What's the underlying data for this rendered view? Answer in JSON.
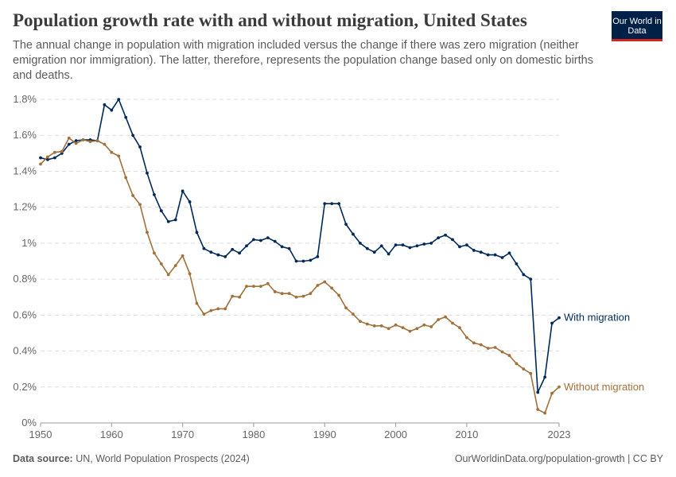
{
  "title": "Population growth rate with and without migration, United States",
  "subtitle": "The annual change in population with migration included versus the change if there was zero migration (neither emigration nor immigration). The latter, therefore, represents the population change based only on domestic births and deaths.",
  "logo": "Our World in Data",
  "footer": {
    "source_label": "Data source:",
    "source": "UN, World Population Prospects (2024)",
    "right": "OurWorldinData.org/population-growth | CC BY"
  },
  "chart_data": {
    "type": "line",
    "xlim": [
      1950,
      2023
    ],
    "ylim": [
      0,
      1.8
    ],
    "grid": "horizontal dashed",
    "legend": "right, inline labels",
    "yticks": [
      {
        "v": 0,
        "label": "0%"
      },
      {
        "v": 0.2,
        "label": "0.2%"
      },
      {
        "v": 0.4,
        "label": "0.4%"
      },
      {
        "v": 0.6,
        "label": "0.6%"
      },
      {
        "v": 0.8,
        "label": "0.8%"
      },
      {
        "v": 1,
        "label": "1%"
      },
      {
        "v": 1.2,
        "label": "1.2%"
      },
      {
        "v": 1.4,
        "label": "1.4%"
      },
      {
        "v": 1.6,
        "label": "1.6%"
      },
      {
        "v": 1.8,
        "label": "1.8%"
      }
    ],
    "xticks": [
      {
        "v": 1950,
        "label": "1950"
      },
      {
        "v": 1960,
        "label": "1960"
      },
      {
        "v": 1970,
        "label": "1970"
      },
      {
        "v": 1980,
        "label": "1980"
      },
      {
        "v": 1990,
        "label": "1990"
      },
      {
        "v": 2000,
        "label": "2000"
      },
      {
        "v": 2010,
        "label": "2010"
      },
      {
        "v": 2023,
        "label": "2023"
      }
    ],
    "x_start": 1950,
    "series": [
      {
        "name": "With migration",
        "color": "#00295b",
        "values": [
          1.475,
          1.465,
          1.475,
          1.5,
          1.55,
          1.57,
          1.575,
          1.575,
          1.57,
          1.77,
          1.74,
          1.8,
          1.7,
          1.6,
          1.535,
          1.39,
          1.27,
          1.18,
          1.12,
          1.13,
          1.29,
          1.23,
          1.06,
          0.97,
          0.95,
          0.935,
          0.925,
          0.965,
          0.945,
          0.985,
          1.02,
          1.015,
          1.03,
          1.01,
          0.98,
          0.97,
          0.9,
          0.9,
          0.905,
          0.925,
          1.22,
          1.22,
          1.22,
          1.105,
          1.05,
          1.0,
          0.97,
          0.95,
          0.985,
          0.94,
          0.99,
          0.99,
          0.975,
          0.985,
          0.995,
          1.0,
          1.03,
          1.045,
          1.02,
          0.98,
          0.99,
          0.96,
          0.95,
          0.935,
          0.935,
          0.92,
          0.945,
          0.885,
          0.825,
          0.8,
          0.17,
          0.255,
          0.555,
          0.585
        ]
      },
      {
        "name": "Without migration",
        "color": "#a2703a",
        "values": [
          1.44,
          1.48,
          1.505,
          1.51,
          1.585,
          1.555,
          1.575,
          1.565,
          1.57,
          1.55,
          1.505,
          1.485,
          1.365,
          1.265,
          1.215,
          1.06,
          0.945,
          0.885,
          0.825,
          0.875,
          0.93,
          0.83,
          0.665,
          0.605,
          0.625,
          0.635,
          0.635,
          0.705,
          0.7,
          0.76,
          0.76,
          0.76,
          0.775,
          0.73,
          0.72,
          0.72,
          0.7,
          0.705,
          0.72,
          0.765,
          0.785,
          0.75,
          0.71,
          0.64,
          0.605,
          0.565,
          0.55,
          0.54,
          0.54,
          0.525,
          0.545,
          0.53,
          0.51,
          0.525,
          0.545,
          0.535,
          0.575,
          0.59,
          0.555,
          0.53,
          0.475,
          0.445,
          0.435,
          0.415,
          0.42,
          0.395,
          0.375,
          0.33,
          0.3,
          0.275,
          0.075,
          0.055,
          0.165,
          0.2
        ]
      }
    ]
  }
}
